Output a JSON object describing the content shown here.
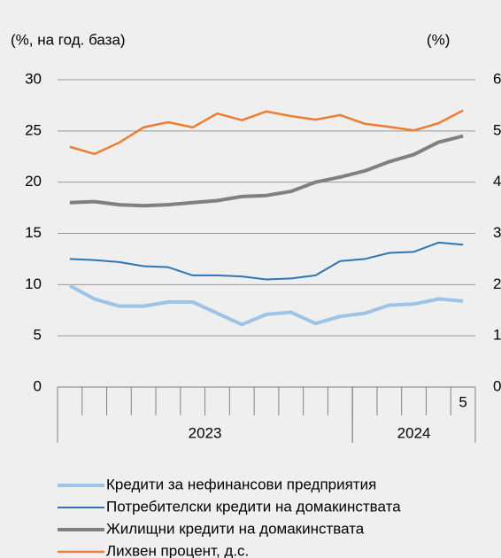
{
  "chart_data": {
    "type": "line",
    "y_label": "(%, на год. база)",
    "y2_label": "(%)",
    "categories": [
      null,
      null,
      null,
      null,
      null,
      null,
      null,
      null,
      null,
      null,
      null,
      null,
      null,
      null,
      null,
      null,
      "5"
    ],
    "x_groups": [
      {
        "label": "2023",
        "count": 12
      },
      {
        "label": "2024",
        "count": 5
      }
    ],
    "ylim": [
      0,
      30
    ],
    "yticks": [
      0,
      5,
      10,
      15,
      20,
      25,
      30
    ],
    "y2lim": [
      0,
      6
    ],
    "y2ticks": [
      0,
      1,
      2,
      3,
      4,
      5,
      6
    ],
    "grid": true,
    "series": [
      {
        "name": "Кредити за нефинансови предприятия",
        "color": "#9dc3e6",
        "width": 4,
        "values": [
          9.9,
          8.6,
          7.9,
          7.9,
          8.3,
          8.3,
          7.2,
          6.1,
          7.1,
          7.3,
          6.2,
          6.9,
          7.2,
          8.0,
          8.1,
          8.6,
          8.4
        ]
      },
      {
        "name": "Потребителски кредити на домакинствата",
        "color": "#2e75b6",
        "width": 2,
        "values": [
          12.5,
          12.4,
          12.2,
          11.8,
          11.7,
          10.9,
          10.9,
          10.8,
          10.5,
          10.6,
          10.9,
          12.3,
          12.5,
          13.1,
          13.2,
          14.1,
          13.9
        ]
      },
      {
        "name": "Жилищни кредити на домакинствата",
        "color": "#808080",
        "width": 4,
        "values": [
          18.0,
          18.1,
          17.8,
          17.7,
          17.8,
          18.0,
          18.2,
          18.6,
          18.7,
          19.1,
          20.0,
          20.5,
          21.1,
          22.0,
          22.7,
          23.9,
          24.5
        ]
      },
      {
        "name": "Лихвен процент, д.с.",
        "color": "#ed7d31",
        "width": 2.5,
        "axis": "y2",
        "values": [
          4.69,
          4.55,
          4.77,
          5.07,
          5.17,
          5.07,
          5.34,
          5.21,
          5.38,
          5.29,
          5.22,
          5.31,
          5.14,
          5.08,
          5.01,
          5.15,
          5.4
        ]
      }
    ]
  }
}
